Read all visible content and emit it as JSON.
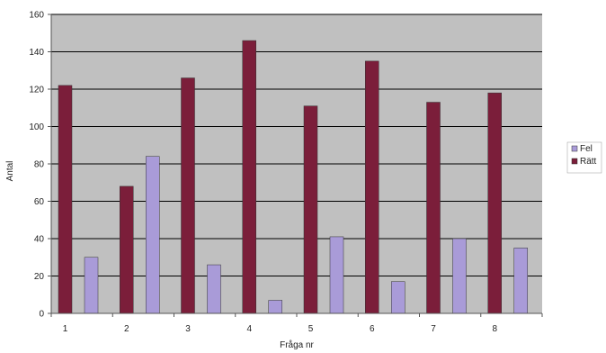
{
  "chart_data": {
    "type": "bar",
    "categories": [
      "1",
      "2",
      "3",
      "4",
      "5",
      "6",
      "7",
      "8"
    ],
    "series": [
      {
        "name": "Rätt",
        "values": [
          122,
          68,
          126,
          146,
          111,
          135,
          113,
          118
        ],
        "color": "#7b1e3a"
      },
      {
        "name": "Fel",
        "values": [
          30,
          84,
          26,
          7,
          41,
          17,
          40,
          35
        ],
        "color": "#a99bd8"
      }
    ],
    "title": "",
    "xlabel": "Fråga nr",
    "ylabel": "Antal",
    "ylim": [
      0,
      160
    ],
    "yticks": [
      0,
      20,
      40,
      60,
      80,
      100,
      120,
      140,
      160
    ],
    "grid": true,
    "legend": "right",
    "plot_background": "#c0c0c0",
    "gridline_color": "#000000"
  }
}
